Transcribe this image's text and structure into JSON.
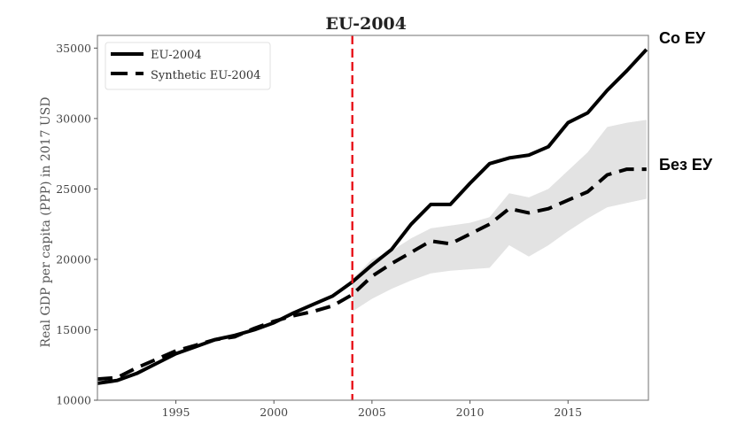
{
  "chart_data": {
    "type": "line",
    "title": "EU-2004",
    "xlabel": "",
    "ylabel": "Real GDP per capita (PPP) in 2017 USD",
    "xlim": [
      1991,
      2019.1
    ],
    "ylim": [
      10000,
      35900
    ],
    "x_ticks": [
      1995,
      2000,
      2005,
      2010,
      2015
    ],
    "y_ticks": [
      10000,
      15000,
      20000,
      25000,
      30000,
      35000
    ],
    "x_tick_labels": [
      "1995",
      "2000",
      "2005",
      "2010",
      "2015"
    ],
    "y_tick_labels": [
      "10000",
      "15000",
      "20000",
      "25000",
      "30000",
      "35000"
    ],
    "grid": false,
    "legend_position": "top-left",
    "x": [
      1991,
      1992,
      1993,
      1994,
      1995,
      1996,
      1997,
      1998,
      1999,
      2000,
      2001,
      2002,
      2003,
      2004,
      2005,
      2006,
      2007,
      2008,
      2009,
      2010,
      2011,
      2012,
      2013,
      2014,
      2015,
      2016,
      2017,
      2018,
      2019
    ],
    "series": [
      {
        "name": "EU-2004",
        "style": "solid",
        "color": "#000000",
        "values": [
          11200,
          11400,
          11900,
          12600,
          13300,
          13800,
          14300,
          14600,
          15000,
          15500,
          16200,
          16800,
          17400,
          18400,
          19600,
          20700,
          22500,
          23900,
          23900,
          25400,
          26800,
          27200,
          27400,
          28000,
          29700,
          30400,
          32000,
          33400,
          34900
        ]
      },
      {
        "name": "Synthetic EU-2004",
        "style": "dashed",
        "color": "#000000",
        "values": [
          11500,
          11600,
          12300,
          12900,
          13500,
          13900,
          14300,
          14500,
          15100,
          15600,
          16000,
          16300,
          16700,
          17500,
          18800,
          19700,
          20500,
          21300,
          21100,
          21800,
          22500,
          23600,
          23300,
          23600,
          24200,
          24800,
          26000,
          26400,
          26400
        ]
      }
    ],
    "confidence_band": {
      "color": "#e3e3e3",
      "x": [
        2004,
        2005,
        2006,
        2007,
        2008,
        2009,
        2010,
        2011,
        2012,
        2013,
        2014,
        2015,
        2016,
        2017,
        2018,
        2019
      ],
      "upper": [
        18600,
        20000,
        20600,
        21500,
        22200,
        22400,
        22600,
        23000,
        24700,
        24400,
        25000,
        26300,
        27600,
        29400,
        29700,
        29900
      ],
      "lower": [
        16300,
        17200,
        17900,
        18500,
        19000,
        19200,
        19300,
        19400,
        21000,
        20200,
        21000,
        22000,
        22900,
        23700,
        24000,
        24300
      ]
    },
    "vertical_line": {
      "x": 2004,
      "color": "#e8141c",
      "style": "dashed"
    },
    "annotations": [
      {
        "text": "Со ЕУ",
        "series": "EU-2004"
      },
      {
        "text": "Без ЕУ",
        "series": "Synthetic EU-2004"
      }
    ]
  }
}
